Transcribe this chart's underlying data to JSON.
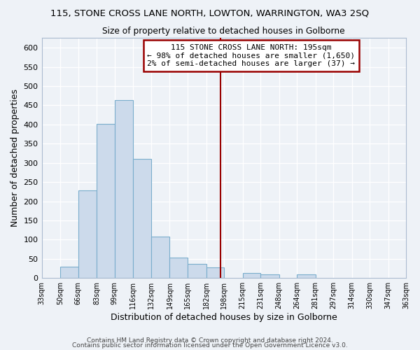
{
  "title": "115, STONE CROSS LANE NORTH, LOWTON, WARRINGTON, WA3 2SQ",
  "subtitle": "Size of property relative to detached houses in Golborne",
  "xlabel": "Distribution of detached houses by size in Golborne",
  "ylabel": "Number of detached properties",
  "bar_color": "#ccdaeb",
  "bar_edge_color": "#7aadcc",
  "bins": [
    33,
    50,
    66,
    83,
    99,
    116,
    132,
    149,
    165,
    182,
    198,
    215,
    231,
    248,
    264,
    281,
    297,
    314,
    330,
    347,
    363
  ],
  "bin_labels": [
    "33sqm",
    "50sqm",
    "66sqm",
    "83sqm",
    "99sqm",
    "116sqm",
    "132sqm",
    "149sqm",
    "165sqm",
    "182sqm",
    "198sqm",
    "215sqm",
    "231sqm",
    "248sqm",
    "264sqm",
    "281sqm",
    "297sqm",
    "314sqm",
    "330sqm",
    "347sqm",
    "363sqm"
  ],
  "counts": [
    0,
    30,
    228,
    401,
    463,
    310,
    108,
    53,
    37,
    28,
    0,
    14,
    10,
    0,
    9,
    0,
    0,
    0,
    0,
    0
  ],
  "vline_x": 195,
  "vline_color": "#990000",
  "annotation_line1": "115 STONE CROSS LANE NORTH: 195sqm",
  "annotation_line2": "← 98% of detached houses are smaller (1,650)",
  "annotation_line3": "2% of semi-detached houses are larger (37) →",
  "annotation_bbox_color": "white",
  "annotation_bbox_edge": "#990000",
  "ylim": [
    0,
    625
  ],
  "yticks": [
    0,
    50,
    100,
    150,
    200,
    250,
    300,
    350,
    400,
    450,
    500,
    550,
    600
  ],
  "footer1": "Contains HM Land Registry data © Crown copyright and database right 2024.",
  "footer2": "Contains public sector information licensed under the Open Government Licence v3.0.",
  "background_color": "#eef2f7",
  "plot_bg_color": "#eef2f7",
  "grid_color": "#ffffff",
  "spine_color": "#aabbd0"
}
